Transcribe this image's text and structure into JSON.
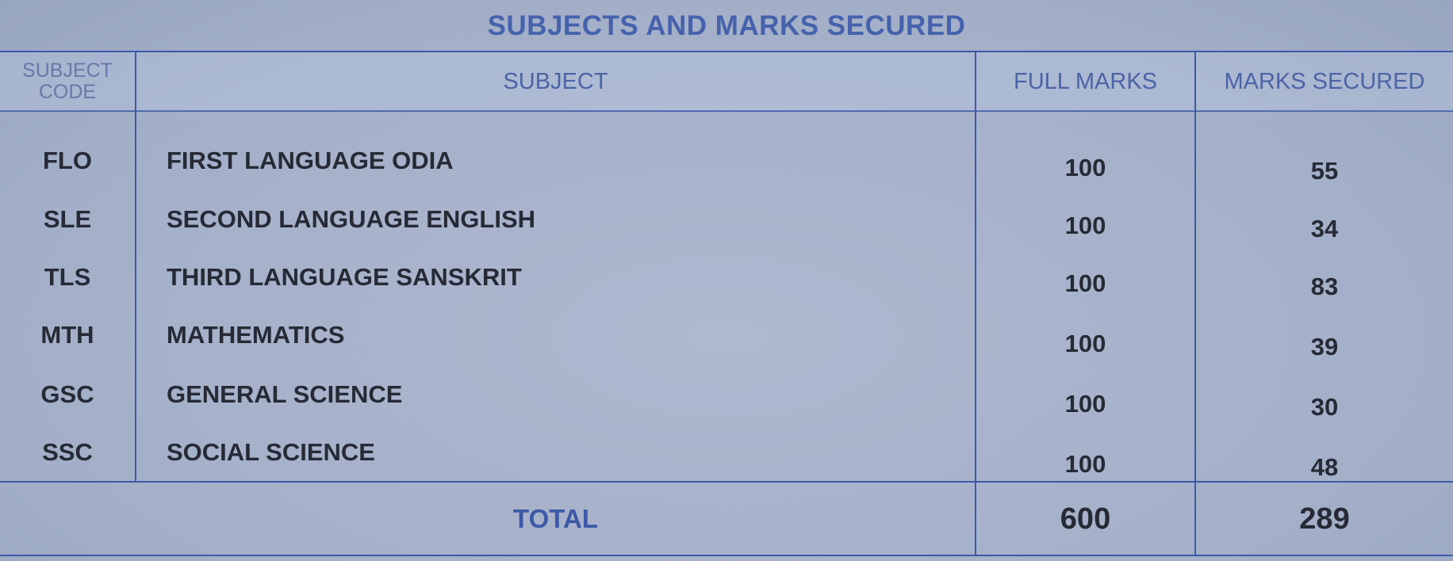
{
  "title": "SUBJECTS AND MARKS SECURED",
  "headers": {
    "code": "SUBJECT CODE",
    "code_line1": "SUBJECT",
    "code_line2": "CODE",
    "subject": "SUBJECT",
    "full_marks": "FULL MARKS",
    "marks_secured": "MARKS SECURED"
  },
  "rows": [
    {
      "code": "FLO",
      "subject": "FIRST LANGUAGE ODIA",
      "full_marks": "100",
      "marks_secured": "55"
    },
    {
      "code": "SLE",
      "subject": "SECOND LANGUAGE ENGLISH",
      "full_marks": "100",
      "marks_secured": "34"
    },
    {
      "code": "TLS",
      "subject": "THIRD LANGUAGE SANSKRIT",
      "full_marks": "100",
      "marks_secured": "83"
    },
    {
      "code": "MTH",
      "subject": "MATHEMATICS",
      "full_marks": "100",
      "marks_secured": "39"
    },
    {
      "code": "GSC",
      "subject": "GENERAL SCIENCE",
      "full_marks": "100",
      "marks_secured": "30"
    },
    {
      "code": "SSC",
      "subject": "SOCIAL SCIENCE",
      "full_marks": "100",
      "marks_secured": "48"
    }
  ],
  "total": {
    "label": "TOTAL",
    "full_marks": "600",
    "marks_secured": "289"
  },
  "colors": {
    "background": "#a7b2ca",
    "rule": "#3d59a8",
    "heading_text": "#4662ad",
    "body_text": "#262a36"
  }
}
